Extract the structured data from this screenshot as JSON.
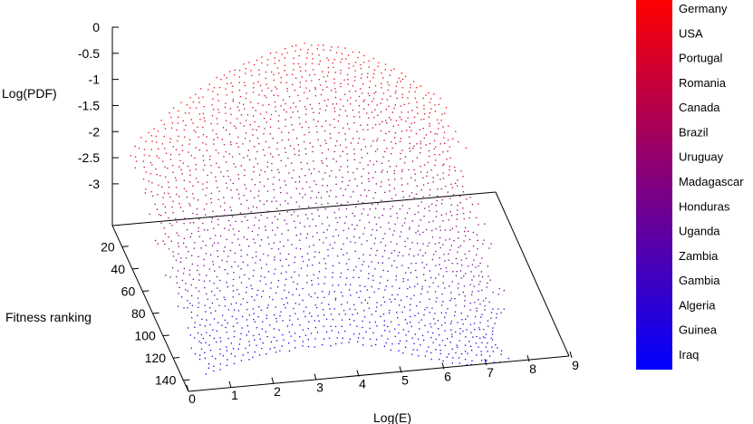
{
  "chart_data": {
    "type": "scatter",
    "title": "",
    "xlabel": "Log(E)",
    "ylabel": "Fitness ranking",
    "zlabel": "Log(PDF)",
    "xlim": [
      0,
      9
    ],
    "ylim": [
      1,
      150
    ],
    "zlim": [
      -3.8,
      0
    ],
    "x_ticks": [
      "0",
      "1",
      "2",
      "3",
      "4",
      "5",
      "6",
      "7",
      "8",
      "9"
    ],
    "y_ticks": [
      "20",
      "40",
      "60",
      "80",
      "100",
      "120",
      "140"
    ],
    "z_ticks": [
      "0",
      "-0.5",
      "-1",
      "-1.5",
      "-2",
      "-2.5",
      "-3"
    ],
    "colorbar": {
      "position": "right",
      "top_color": "#ff0000",
      "bottom_color": "#0000ff",
      "labels": [
        "Germany",
        "USA",
        "Portugal",
        "Romania",
        "Canada",
        "Brazil",
        "Uruguay",
        "Madagascar",
        "Honduras",
        "Uganda",
        "Zambia",
        "Gambia",
        "Algeria",
        "Guinea",
        "Iraq"
      ]
    },
    "series": [
      {
        "description_points": "surface z = f(logE, rank)",
        "surface_samples": [
          {
            "rank": 1,
            "logE": [
              0.5,
              1.5,
              2.5,
              3.5,
              4.5,
              5.5,
              6.5,
              7.5
            ],
            "z": [
              -2.3,
              -1.6,
              -1.1,
              -0.8,
              -0.6,
              -0.8,
              -1.2,
              -1.8
            ]
          },
          {
            "rank": 40,
            "logE": [
              0.5,
              1.5,
              2.5,
              3.5,
              4.5,
              5.5,
              6.5,
              7.5
            ],
            "z": [
              -2.6,
              -2.0,
              -1.5,
              -1.2,
              -1.1,
              -1.3,
              -1.8,
              -2.5
            ]
          },
          {
            "rank": 80,
            "logE": [
              0.5,
              1.5,
              2.5,
              3.5,
              4.5,
              5.5,
              6.5,
              7.5
            ],
            "z": [
              -3.0,
              -2.5,
              -2.1,
              -1.9,
              -1.9,
              -2.2,
              -2.7,
              -3.3
            ]
          },
          {
            "rank": 120,
            "logE": [
              0.5,
              1.5,
              2.5,
              3.5,
              4.5,
              5.5,
              6.5,
              7.5
            ],
            "z": [
              -3.3,
              -3.0,
              -2.8,
              -2.7,
              -2.8,
              -3.1,
              -3.5,
              -3.8
            ]
          },
          {
            "rank": 150,
            "logE": [
              0.5,
              1.5,
              2.5,
              3.5,
              4.5,
              5.5,
              6.5,
              7.5
            ],
            "z": [
              -3.5,
              -3.3,
              -3.2,
              -3.2,
              -3.3,
              -3.6,
              -3.8,
              -3.8
            ]
          }
        ]
      }
    ]
  }
}
